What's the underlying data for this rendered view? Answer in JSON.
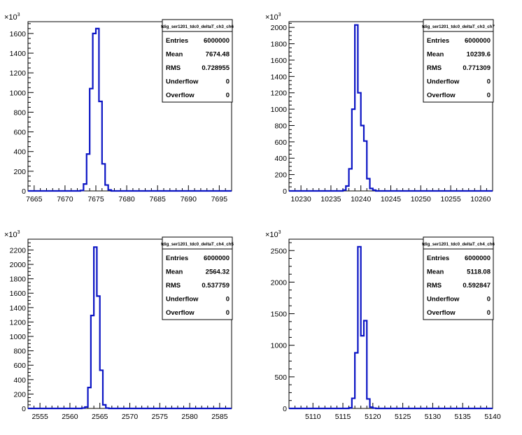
{
  "chart_data": [
    {
      "type": "histogram",
      "title": "tdig_ser1201_tdc0_deltaT_ch3_ch6",
      "xlim": [
        7664,
        7697
      ],
      "ylim": [
        0,
        1720
      ],
      "y_exponent": "10^3",
      "x_ticks": [
        7665,
        7670,
        7675,
        7680,
        7685,
        7690,
        7695
      ],
      "y_ticks": [
        0,
        200,
        400,
        600,
        800,
        1000,
        1200,
        1400,
        1600
      ],
      "bin_width": 0.5,
      "bins_x": [
        7672.5,
        7673.0,
        7673.5,
        7674.0,
        7674.5,
        7675.0,
        7675.5,
        7676.0,
        7676.5,
        7677.0
      ],
      "bins_y": [
        5,
        70,
        375,
        1040,
        1600,
        1650,
        910,
        275,
        60,
        10
      ],
      "stats": {
        "Entries": "6000000",
        "Mean": "7674.48",
        "RMS": "0.728955",
        "Underflow": "0",
        "Overflow": "0"
      }
    },
    {
      "type": "histogram",
      "title": "tdig_ser1201_tdc0_deltaT_ch3_ch7",
      "xlim": [
        10228,
        10262
      ],
      "ylim": [
        0,
        2070
      ],
      "y_exponent": "10^3",
      "x_ticks": [
        10230,
        10235,
        10240,
        10245,
        10250,
        10255,
        10260
      ],
      "y_ticks": [
        0,
        200,
        400,
        600,
        800,
        1000,
        1200,
        1400,
        1600,
        1800,
        2000
      ],
      "bin_width": 0.5,
      "bins_x": [
        10237.0,
        10237.5,
        10238.0,
        10238.5,
        10239.0,
        10239.5,
        10240.0,
        10240.5,
        10241.0,
        10241.5,
        10242.0
      ],
      "bins_y": [
        10,
        60,
        270,
        1000,
        2030,
        1200,
        800,
        610,
        150,
        30,
        10
      ],
      "stats": {
        "Entries": "6000000",
        "Mean": "10239.6",
        "RMS": "0.771309",
        "Underflow": "0",
        "Overflow": "0"
      }
    },
    {
      "type": "histogram",
      "title": "tdig_ser1201_tdc0_deltaT_ch4_ch5",
      "xlim": [
        2553,
        2587
      ],
      "ylim": [
        0,
        2350
      ],
      "y_exponent": "10^3",
      "x_ticks": [
        2555,
        2560,
        2565,
        2570,
        2575,
        2580,
        2585
      ],
      "y_ticks": [
        0,
        200,
        400,
        600,
        800,
        1000,
        1200,
        1400,
        1600,
        1800,
        2000,
        2200
      ],
      "bin_width": 0.5,
      "bins_x": [
        2562.0,
        2562.5,
        2563.0,
        2563.5,
        2564.0,
        2564.5,
        2565.0,
        2565.5,
        2566.0
      ],
      "bins_y": [
        5,
        20,
        290,
        1290,
        2240,
        1560,
        530,
        50,
        5
      ],
      "stats": {
        "Entries": "6000000",
        "Mean": "2564.32",
        "RMS": "0.537759",
        "Underflow": "0",
        "Overflow": "0"
      }
    },
    {
      "type": "histogram",
      "title": "tdig_ser1201_tdc0_deltaT_ch4_ch6",
      "xlim": [
        5106,
        5140
      ],
      "ylim": [
        0,
        2680
      ],
      "y_exponent": "10^3",
      "x_ticks": [
        5110,
        5115,
        5120,
        5125,
        5130,
        5135,
        5140
      ],
      "y_ticks": [
        0,
        500,
        1000,
        1500,
        2000,
        2500
      ],
      "bin_width": 0.5,
      "bins_x": [
        5116.0,
        5116.5,
        5117.0,
        5117.5,
        5118.0,
        5118.5,
        5119.0,
        5119.5,
        5120.0
      ],
      "bins_y": [
        10,
        160,
        880,
        2560,
        1150,
        1390,
        150,
        20,
        5
      ],
      "stats": {
        "Entries": "6000000",
        "Mean": "5118.08",
        "RMS": "0.592847",
        "Underflow": "0",
        "Overflow": "0"
      }
    }
  ],
  "stat_labels": [
    "Entries",
    "Mean",
    "RMS",
    "Underflow",
    "Overflow"
  ],
  "colors": {
    "histogram_line": "#0b14c4",
    "axis": "#000000",
    "background": "#ffffff"
  }
}
